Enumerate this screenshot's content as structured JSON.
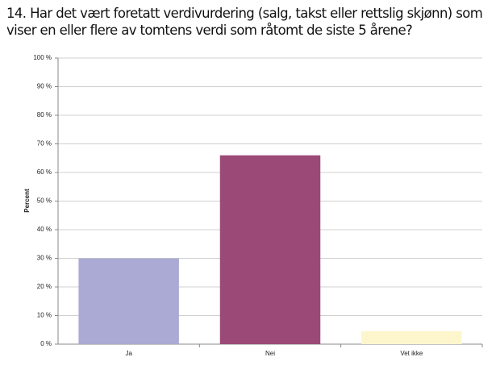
{
  "chart_data": {
    "type": "bar",
    "title": "14. Har det vært foretatt verdivurdering (salg, takst eller rettslig skjønn) som viser en eller flere av tomtens verdi som råtomt de siste 5 årene?",
    "ylabel": "Percent",
    "categories": [
      "Ja",
      "Nei",
      "Vet ikke"
    ],
    "values": [
      30,
      66,
      4.5
    ],
    "colors": [
      "#aaaad4",
      "#9b4a78",
      "#fdf6cc"
    ],
    "ylim": [
      0,
      100
    ],
    "yticks": [
      {
        "value": 0,
        "label": "0 %"
      },
      {
        "value": 10,
        "label": "10 %"
      },
      {
        "value": 20,
        "label": "20 %"
      },
      {
        "value": 30,
        "label": "30 %"
      },
      {
        "value": 40,
        "label": "40 %"
      },
      {
        "value": 50,
        "label": "50 %"
      },
      {
        "value": 60,
        "label": "60 %"
      },
      {
        "value": 70,
        "label": "70 %"
      },
      {
        "value": 80,
        "label": "80 %"
      },
      {
        "value": 90,
        "label": "90 %"
      },
      {
        "value": 100,
        "label": "100 %"
      }
    ],
    "grid": true
  }
}
